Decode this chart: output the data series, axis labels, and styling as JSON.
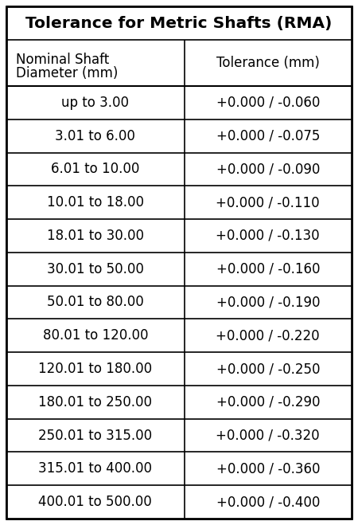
{
  "title": "Tolerance for Metric Shafts (RMA)",
  "col1_header_line1": "Nominal Shaft",
  "col1_header_line2": "Diameter (mm)",
  "col2_header": "Tolerance (mm)",
  "rows": [
    [
      "up to 3.00",
      "+0.000 / -0.060"
    ],
    [
      "3.01 to 6.00",
      "+0.000 / -0.075"
    ],
    [
      "6.01 to 10.00",
      "+0.000 / -0.090"
    ],
    [
      "10.01 to 18.00",
      "+0.000 / -0.110"
    ],
    [
      "18.01 to 30.00",
      "+0.000 / -0.130"
    ],
    [
      "30.01 to 50.00",
      "+0.000 / -0.160"
    ],
    [
      "50.01 to 80.00",
      "+0.000 / -0.190"
    ],
    [
      "80.01 to 120.00",
      "+0.000 / -0.220"
    ],
    [
      "120.01 to 180.00",
      "+0.000 / -0.250"
    ],
    [
      "180.01 to 250.00",
      "+0.000 / -0.290"
    ],
    [
      "250.01 to 315.00",
      "+0.000 / -0.320"
    ],
    [
      "315.01 to 400.00",
      "+0.000 / -0.360"
    ],
    [
      "400.01 to 500.00",
      "+0.000 / -0.400"
    ]
  ],
  "title_fontsize": 14.5,
  "header_fontsize": 12,
  "cell_fontsize": 12,
  "bg_color": "#ffffff",
  "border_color": "#000000",
  "title_font_weight": "bold",
  "fig_width": 4.5,
  "fig_height": 6.59,
  "dpi": 100
}
